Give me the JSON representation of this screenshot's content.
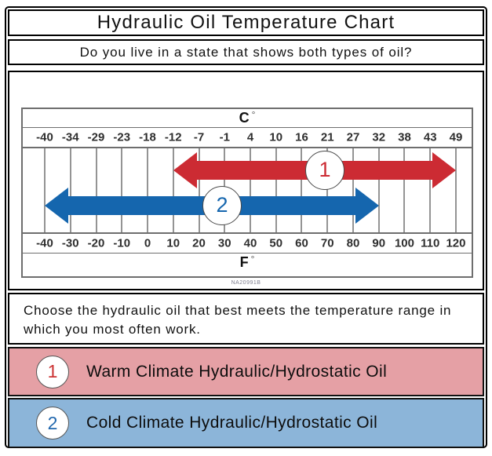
{
  "title": "Hydraulic Oil Temperature Chart",
  "question": "Do you live in a state that shows both types of oil?",
  "instruction": "Choose the hydraulic oil that best meets the temperature range in which you most often work.",
  "figure_code": "NA20991B",
  "axis": {
    "top_label": "C",
    "bottom_label": "F",
    "degree": "°"
  },
  "chart_data": {
    "type": "bar",
    "title": "Hydraulic Oil Temperature Chart",
    "xlabel_top": "C°",
    "xlabel_bottom": "F°",
    "axis_range_f": [
      -40,
      120
    ],
    "celsius_ticks": [
      "-40",
      "-34",
      "-29",
      "-23",
      "-18",
      "-12",
      "-7",
      "-1",
      "4",
      "10",
      "16",
      "21",
      "27",
      "32",
      "38",
      "43",
      "49"
    ],
    "fahrenheit_ticks": [
      "-40",
      "-30",
      "-20",
      "-10",
      "0",
      "10",
      "20",
      "30",
      "40",
      "50",
      "60",
      "70",
      "80",
      "90",
      "100",
      "110",
      "120"
    ],
    "grid": true,
    "series": [
      {
        "marker": "1",
        "name": "Warm Climate Hydraulic/Hydrostatic Oil",
        "range_f": [
          10,
          120
        ],
        "range_c": [
          -12,
          49
        ],
        "color": "#cc2b33",
        "arrow_center_y_pct": 26,
        "marker_position_f": 69
      },
      {
        "marker": "2",
        "name": "Cold Climate Hydraulic/Hydrostatic Oil",
        "range_f": [
          -40,
          90
        ],
        "range_c": [
          -40,
          32
        ],
        "color": "#1566ae",
        "arrow_center_y_pct": 68,
        "marker_position_f": 29
      }
    ]
  },
  "legend": {
    "items": [
      {
        "marker": "1",
        "label": "Warm Climate Hydraulic/Hydrostatic Oil",
        "bg": "#e5a0a5",
        "number_color": "#cc3333"
      },
      {
        "marker": "2",
        "label": "Cold Climate Hydraulic/Hydrostatic Oil",
        "bg": "#8cb5d9",
        "number_color": "#2268ae"
      }
    ]
  },
  "colors": {
    "warm_arrow": "#cc2b33",
    "cold_arrow": "#1566ae",
    "warm_row_bg": "#e5a0a5",
    "cold_row_bg": "#8cb5d9",
    "frame_border": "#000000",
    "scale_border": "#6e6e6e",
    "gridline": "#949494"
  }
}
